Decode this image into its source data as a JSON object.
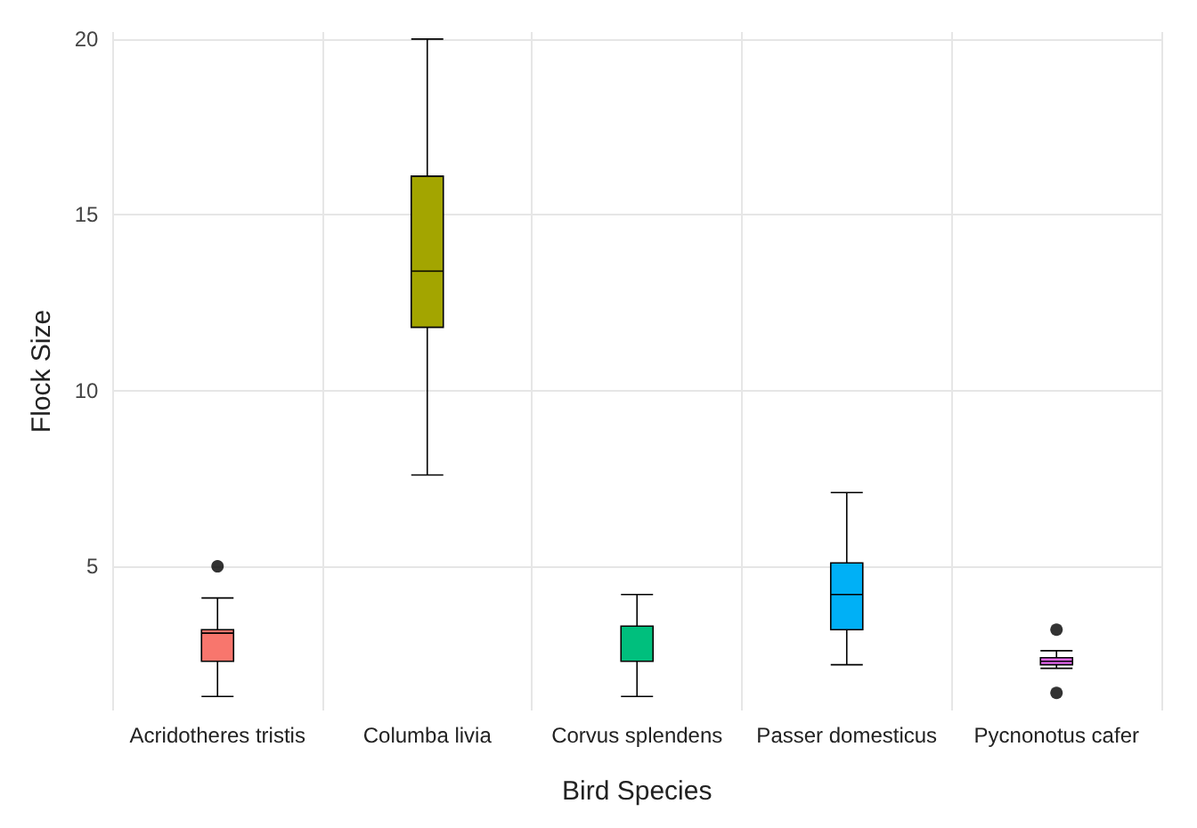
{
  "chart_data": {
    "type": "box",
    "xlabel": "Bird Species",
    "ylabel": "Flock Size",
    "categories": [
      "Acridotheres tristis",
      "Columba livia",
      "Corvus splendens",
      "Passer domesticus",
      "Pycnonotus cafer"
    ],
    "colors": [
      "#f8766d",
      "#a3a500",
      "#00bf7d",
      "#00b0f6",
      "#e76bf3"
    ],
    "boxes": [
      {
        "low": 1.3,
        "q1": 2.3,
        "median": 3.1,
        "q3": 3.2,
        "high": 4.1,
        "outliers": [
          5
        ]
      },
      {
        "low": 7.6,
        "q1": 11.8,
        "median": 13.4,
        "q3": 16.1,
        "high": 20
      },
      {
        "low": 1.3,
        "q1": 2.3,
        "median": 2.3,
        "q3": 3.3,
        "high": 4.2
      },
      {
        "low": 2.2,
        "q1": 3.2,
        "median": 4.2,
        "q3": 5.1,
        "high": 7.1
      },
      {
        "low": 2.1,
        "q1": 2.2,
        "median": 2.3,
        "q3": 2.4,
        "high": 2.6,
        "outliers": [
          3.2,
          1.4
        ]
      }
    ],
    "ylim": [
      0.9,
      20.2
    ],
    "yticks": [
      5,
      10,
      15,
      20
    ],
    "grid": true
  }
}
